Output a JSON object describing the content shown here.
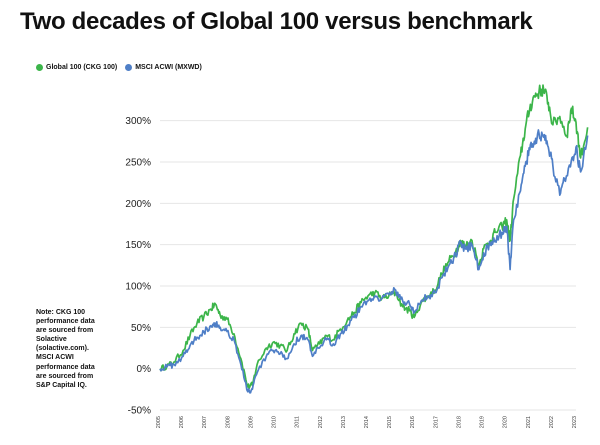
{
  "title": "Two decades of Global 100 versus benchmark",
  "note": "Note: CKG 100 performance data are sourced from Solactive (solactive.com). MSCI ACWI performance data are sourced from S&P Capital IQ.",
  "colors": {
    "global100": "#3cb54a",
    "msci": "#4f7fc7",
    "grid": "#e6e6e6"
  },
  "chart_data": {
    "type": "line",
    "title": "Two decades of Global 100 versus benchmark",
    "xlabel": "",
    "ylabel": "",
    "xlim": [
      2005,
      2023
    ],
    "ylim": [
      -50,
      325
    ],
    "y_ticks": [
      -50,
      0,
      50,
      100,
      150,
      200,
      250,
      300
    ],
    "y_tick_labels": [
      "-50%",
      "0%",
      "50%",
      "100%",
      "150%",
      "200%",
      "250%",
      "300%"
    ],
    "x_ticks": [
      2005,
      2006,
      2007,
      2008,
      2009,
      2010,
      2011,
      2012,
      2013,
      2014,
      2015,
      2016,
      2017,
      2018,
      2019,
      2020,
      2021,
      2022,
      2023
    ],
    "x_tick_labels": [
      "2005",
      "2006",
      "2007",
      "2008",
      "2009",
      "2010",
      "2011",
      "2012",
      "2013",
      "2014",
      "2015",
      "2016",
      "2017",
      "2018",
      "2019",
      "2020",
      "2021",
      "2022",
      "2023"
    ],
    "grid": true,
    "legend": "top-left",
    "series": [
      {
        "name": "Global 100 (CKG 100)",
        "color": "#3cb54a",
        "points": [
          [
            2005.0,
            0
          ],
          [
            2005.3,
            3
          ],
          [
            2005.6,
            8
          ],
          [
            2006.0,
            22
          ],
          [
            2006.3,
            40
          ],
          [
            2006.6,
            55
          ],
          [
            2006.9,
            63
          ],
          [
            2007.2,
            72
          ],
          [
            2007.4,
            78
          ],
          [
            2007.6,
            65
          ],
          [
            2007.9,
            60
          ],
          [
            2008.2,
            42
          ],
          [
            2008.5,
            12
          ],
          [
            2008.8,
            -22
          ],
          [
            2009.0,
            -20
          ],
          [
            2009.2,
            5
          ],
          [
            2009.6,
            25
          ],
          [
            2009.9,
            32
          ],
          [
            2010.2,
            28
          ],
          [
            2010.5,
            22
          ],
          [
            2010.8,
            42
          ],
          [
            2011.1,
            55
          ],
          [
            2011.4,
            48
          ],
          [
            2011.6,
            22
          ],
          [
            2011.9,
            30
          ],
          [
            2012.2,
            40
          ],
          [
            2012.5,
            35
          ],
          [
            2012.8,
            48
          ],
          [
            2013.1,
            58
          ],
          [
            2013.4,
            68
          ],
          [
            2013.7,
            80
          ],
          [
            2014.0,
            88
          ],
          [
            2014.3,
            92
          ],
          [
            2014.6,
            85
          ],
          [
            2014.9,
            88
          ],
          [
            2015.2,
            92
          ],
          [
            2015.5,
            75
          ],
          [
            2015.8,
            70
          ],
          [
            2016.0,
            62
          ],
          [
            2016.3,
            80
          ],
          [
            2016.6,
            88
          ],
          [
            2016.9,
            95
          ],
          [
            2017.2,
            115
          ],
          [
            2017.5,
            130
          ],
          [
            2017.8,
            142
          ],
          [
            2018.0,
            155
          ],
          [
            2018.2,
            148
          ],
          [
            2018.5,
            155
          ],
          [
            2018.8,
            125
          ],
          [
            2019.0,
            145
          ],
          [
            2019.3,
            155
          ],
          [
            2019.5,
            165
          ],
          [
            2019.8,
            172
          ],
          [
            2020.0,
            180
          ],
          [
            2020.15,
            155
          ],
          [
            2020.3,
            205
          ],
          [
            2020.6,
            258
          ],
          [
            2020.8,
            290
          ],
          [
            2021.0,
            315
          ],
          [
            2021.2,
            330
          ],
          [
            2021.4,
            335
          ],
          [
            2021.6,
            338
          ],
          [
            2021.8,
            322
          ],
          [
            2022.0,
            295
          ],
          [
            2022.3,
            305
          ],
          [
            2022.6,
            282
          ],
          [
            2022.8,
            315
          ],
          [
            2023.0,
            298
          ],
          [
            2023.2,
            255
          ],
          [
            2023.5,
            292
          ]
        ]
      },
      {
        "name": "MSCI ACWI (MXWD)",
        "color": "#4f7fc7",
        "points": [
          [
            2005.0,
            0
          ],
          [
            2005.3,
            2
          ],
          [
            2005.6,
            5
          ],
          [
            2006.0,
            15
          ],
          [
            2006.3,
            28
          ],
          [
            2006.6,
            38
          ],
          [
            2006.9,
            45
          ],
          [
            2007.2,
            52
          ],
          [
            2007.4,
            55
          ],
          [
            2007.6,
            50
          ],
          [
            2007.9,
            45
          ],
          [
            2008.2,
            35
          ],
          [
            2008.5,
            5
          ],
          [
            2008.8,
            -28
          ],
          [
            2009.0,
            -25
          ],
          [
            2009.2,
            -5
          ],
          [
            2009.6,
            15
          ],
          [
            2009.9,
            22
          ],
          [
            2010.2,
            18
          ],
          [
            2010.5,
            12
          ],
          [
            2010.8,
            30
          ],
          [
            2011.1,
            40
          ],
          [
            2011.4,
            35
          ],
          [
            2011.6,
            15
          ],
          [
            2011.9,
            25
          ],
          [
            2012.2,
            35
          ],
          [
            2012.5,
            30
          ],
          [
            2012.8,
            42
          ],
          [
            2013.1,
            52
          ],
          [
            2013.4,
            62
          ],
          [
            2013.7,
            75
          ],
          [
            2014.0,
            82
          ],
          [
            2014.3,
            88
          ],
          [
            2014.6,
            85
          ],
          [
            2014.9,
            90
          ],
          [
            2015.2,
            95
          ],
          [
            2015.5,
            82
          ],
          [
            2015.8,
            78
          ],
          [
            2016.0,
            68
          ],
          [
            2016.3,
            82
          ],
          [
            2016.6,
            88
          ],
          [
            2016.9,
            92
          ],
          [
            2017.2,
            110
          ],
          [
            2017.5,
            125
          ],
          [
            2017.8,
            138
          ],
          [
            2018.0,
            152
          ],
          [
            2018.2,
            145
          ],
          [
            2018.5,
            150
          ],
          [
            2018.8,
            120
          ],
          [
            2019.0,
            140
          ],
          [
            2019.3,
            150
          ],
          [
            2019.5,
            155
          ],
          [
            2019.8,
            165
          ],
          [
            2020.0,
            172
          ],
          [
            2020.15,
            120
          ],
          [
            2020.3,
            180
          ],
          [
            2020.6,
            215
          ],
          [
            2020.8,
            245
          ],
          [
            2021.0,
            265
          ],
          [
            2021.2,
            275
          ],
          [
            2021.4,
            285
          ],
          [
            2021.6,
            280
          ],
          [
            2021.8,
            268
          ],
          [
            2022.0,
            245
          ],
          [
            2022.3,
            210
          ],
          [
            2022.5,
            230
          ],
          [
            2022.8,
            252
          ],
          [
            2023.0,
            268
          ],
          [
            2023.2,
            238
          ],
          [
            2023.5,
            282
          ]
        ]
      }
    ]
  }
}
